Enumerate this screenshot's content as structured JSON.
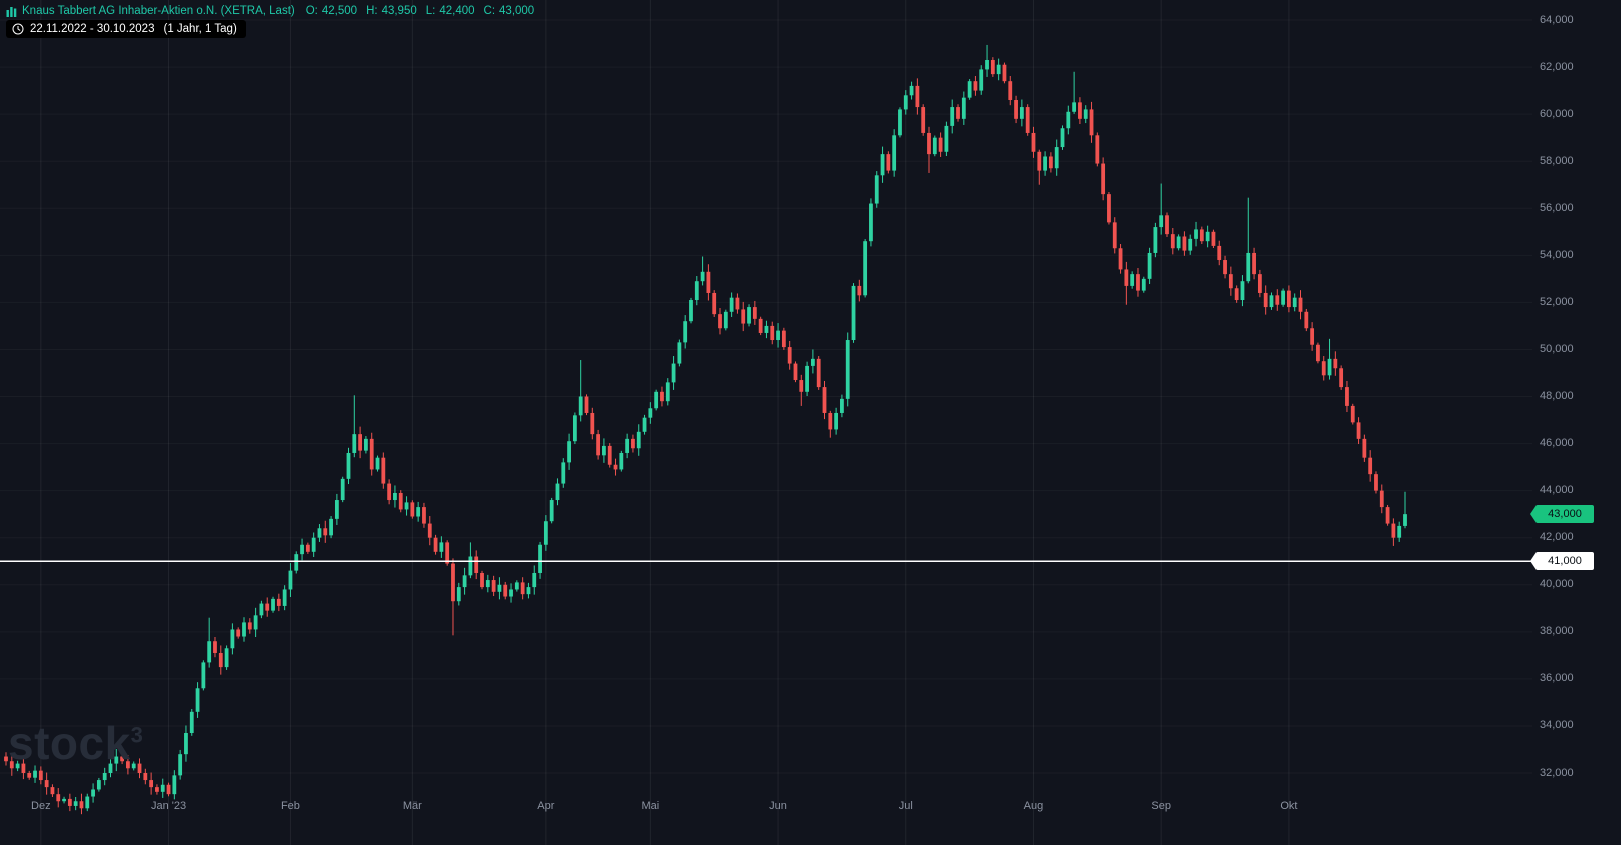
{
  "header": {
    "instrument": "Knaus Tabbert AG Inhaber-Aktien o.N. (XETRA, Last)",
    "ohlc": {
      "o_label": "O:",
      "o_value": "42,500",
      "h_label": "H:",
      "h_value": "43,950",
      "l_label": "L:",
      "l_value": "42,400",
      "c_label": "C:",
      "c_value": "43,000"
    },
    "date_range": "22.11.2022 - 30.10.2023",
    "period": "(1 Jahr, 1 Tag)"
  },
  "watermark": {
    "text": "stock",
    "sup": "3"
  },
  "icons": {
    "header_icon": "candlestick-chart-icon",
    "range_icon": "clock-icon"
  },
  "colors": {
    "background": "#11141d",
    "up": "#2fd3a2",
    "down": "#f05350",
    "grid_h": "rgba(255,255,255,0.04)",
    "grid_v": "rgba(255,255,255,0.07)",
    "header_text": "#1fc8a8",
    "axis_text": "#8b92a0",
    "hline": "#ffffff",
    "badge_green": "#19c37f",
    "pill_bg": "#000000",
    "watermark": "#272d39"
  },
  "chart_data": {
    "type": "candlestick",
    "title": "Knaus Tabbert AG Inhaber-Aktien o.N. (XETRA, Last)",
    "xlabel": "",
    "ylabel": "",
    "ylim": [
      30500,
      64900
    ],
    "grid": true,
    "y_ticks": [
      64000,
      62000,
      60000,
      58000,
      56000,
      54000,
      52000,
      50000,
      48000,
      46000,
      44000,
      42000,
      40000,
      38000,
      36000,
      34000,
      32000
    ],
    "x_axis": {
      "months": [
        {
          "label": "Dez",
          "day": 6
        },
        {
          "label": "Jan '23",
          "day": 28
        },
        {
          "label": "Feb",
          "day": 49
        },
        {
          "label": "Mär",
          "day": 70
        },
        {
          "label": "Apr",
          "day": 93
        },
        {
          "label": "Mai",
          "day": 111
        },
        {
          "label": "Jun",
          "day": 133
        },
        {
          "label": "Jul",
          "day": 155
        },
        {
          "label": "Aug",
          "day": 177
        },
        {
          "label": "Sep",
          "day": 199
        },
        {
          "label": "Okt",
          "day": 221
        }
      ]
    },
    "first_open": 32700,
    "closes": [
      32500,
      32200,
      32400,
      32000,
      31800,
      32100,
      31700,
      31400,
      31100,
      30800,
      30900,
      30600,
      30800,
      30500,
      31000,
      31300,
      31700,
      32000,
      32400,
      32700,
      32500,
      32200,
      32400,
      32000,
      31700,
      31400,
      31200,
      31500,
      31100,
      31900,
      32800,
      33700,
      34600,
      35600,
      36700,
      37600,
      37100,
      36500,
      37300,
      38100,
      37800,
      38400,
      38100,
      38700,
      39200,
      38900,
      39400,
      39100,
      39800,
      40600,
      41300,
      41700,
      41400,
      42000,
      42400,
      42100,
      42800,
      43600,
      44500,
      45600,
      46400,
      45700,
      46200,
      44900,
      45400,
      44300,
      43600,
      43900,
      43200,
      43500,
      42900,
      43300,
      42600,
      42000,
      41400,
      41800,
      40900,
      39300,
      39900,
      40400,
      41200,
      40500,
      39900,
      40200,
      39700,
      40000,
      39500,
      39800,
      40100,
      39600,
      39900,
      40500,
      41700,
      42700,
      43600,
      44300,
      45200,
      46100,
      47200,
      48000,
      47300,
      46400,
      45500,
      45900,
      45100,
      44900,
      45600,
      46200,
      45800,
      46500,
      47100,
      47500,
      48200,
      47800,
      48600,
      49400,
      50300,
      51200,
      52100,
      52900,
      53300,
      52400,
      51500,
      50900,
      51600,
      52200,
      51700,
      51100,
      51800,
      51300,
      50700,
      51000,
      50400,
      50800,
      50100,
      49400,
      48700,
      48200,
      49300,
      49600,
      48400,
      47300,
      46600,
      47300,
      47900,
      50400,
      52700,
      52300,
      54600,
      56200,
      57400,
      58300,
      57600,
      59100,
      60200,
      60800,
      61200,
      60300,
      59200,
      58300,
      59000,
      58400,
      59500,
      60300,
      59800,
      60700,
      61400,
      61000,
      61900,
      62300,
      61700,
      62100,
      61400,
      60600,
      59800,
      60300,
      59200,
      58400,
      57600,
      58200,
      57700,
      58600,
      59400,
      60100,
      60500,
      59800,
      60200,
      59100,
      57900,
      56600,
      55400,
      54300,
      53400,
      52700,
      53200,
      52500,
      53000,
      54100,
      55200,
      55700,
      54900,
      54300,
      54800,
      54200,
      54700,
      55100,
      54600,
      55000,
      54400,
      53800,
      53200,
      52600,
      52100,
      52900,
      54100,
      53200,
      52400,
      51800,
      52300,
      51900,
      52500,
      51800,
      52200,
      51600,
      50900,
      50200,
      49500,
      48900,
      49600,
      49200,
      48400,
      47600,
      46900,
      46200,
      45400,
      44700,
      44000,
      43300,
      42600,
      42000,
      42500,
      43000
    ],
    "wick_pattern": [
      180,
      320,
      120,
      260,
      90,
      220
    ],
    "wick_overrides": {
      "13": {
        "low": 30250
      },
      "35": {
        "high": 38600
      },
      "60": {
        "high": 48050
      },
      "77": {
        "low": 37850
      },
      "80": {
        "high": 41800
      },
      "92": {
        "low": 40250
      },
      "99": {
        "high": 49550
      },
      "120": {
        "high": 53950
      },
      "137": {
        "low": 47600
      },
      "139": {
        "high": 50000
      },
      "142": {
        "low": 46250
      },
      "159": {
        "low": 57500
      },
      "169": {
        "high": 62940
      },
      "178": {
        "low": 57000
      },
      "184": {
        "high": 61800
      },
      "193": {
        "low": 51900
      },
      "199": {
        "high": 57050
      },
      "214": {
        "high": 56450
      },
      "228": {
        "high": 50450
      },
      "239": {
        "low": 41650
      },
      "241": {
        "high": 43950,
        "low": 42400
      }
    },
    "last_candle": {
      "open": 42500,
      "high": 43950,
      "low": 42400,
      "close": 43000
    },
    "hline": {
      "price": 41000,
      "label": "41,000"
    },
    "last_price": {
      "price": 43000,
      "label": "43,000"
    }
  }
}
